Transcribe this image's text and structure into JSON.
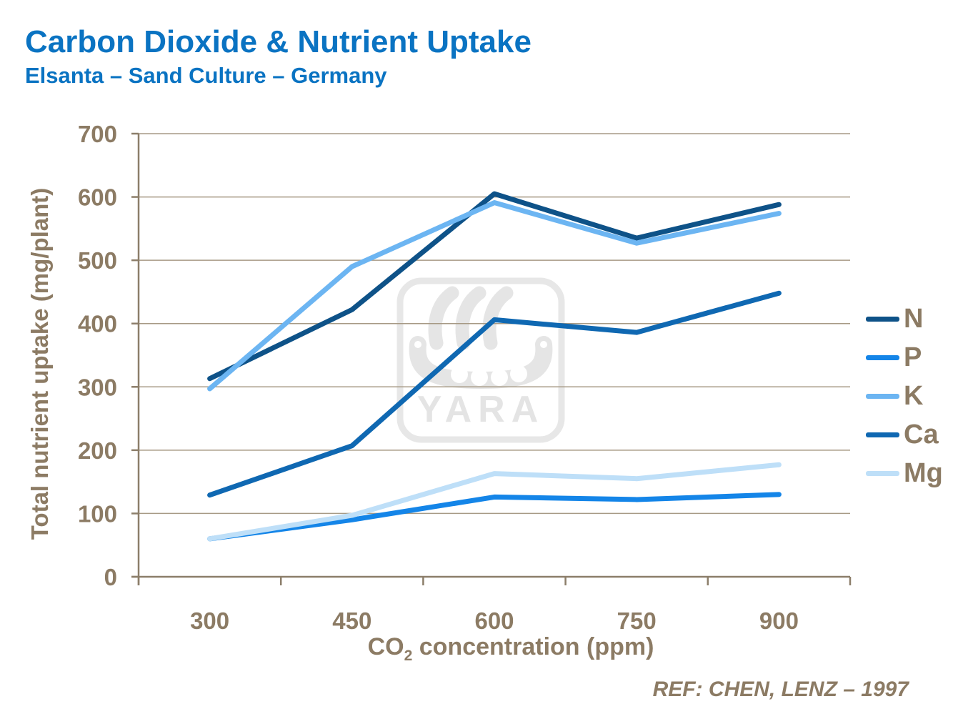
{
  "header": {
    "title": "Carbon Dioxide & Nutrient Uptake",
    "subtitle": "Elsanta – Sand Culture – Germany"
  },
  "watermark": {
    "label": "YARA"
  },
  "footnote": {
    "ref": "REF: CHEN, LENZ – 1997"
  },
  "chart_data": {
    "type": "line",
    "title": "Carbon Dioxide & Nutrient Uptake",
    "subtitle": "Elsanta – Sand Culture – Germany",
    "categories": [
      "300",
      "450",
      "600",
      "750",
      "900"
    ],
    "series": [
      {
        "name": "N",
        "color": "#0E5288",
        "values": [
          313,
          422,
          605,
          535,
          588
        ]
      },
      {
        "name": "P",
        "color": "#1485E8",
        "values": [
          60,
          90,
          126,
          122,
          130
        ]
      },
      {
        "name": "K",
        "color": "#6CB5F2",
        "values": [
          297,
          490,
          591,
          527,
          574
        ]
      },
      {
        "name": "Ca",
        "color": "#0F68B2",
        "values": [
          129,
          207,
          406,
          386,
          448
        ]
      },
      {
        "name": "Mg",
        "color": "#BEDFF8",
        "values": [
          60,
          97,
          163,
          155,
          177
        ]
      }
    ],
    "xlabel": "CO2 concentration (ppm)",
    "xlabel_parts": {
      "base": "CO",
      "sub": "2",
      "rest": " concentration (ppm)"
    },
    "ylabel": "Total nutrient uptake (mg/plant)",
    "ylim": [
      0,
      700
    ],
    "ytick_step": 100,
    "grid": "horizontal",
    "legend_position": "right"
  },
  "colors": {
    "title_text": "#0A73C2",
    "axis_text": "#8C7B64",
    "gridline": "#A79A85",
    "axis_line": "#8C7E6A",
    "watermark": "#E5E5E5"
  }
}
